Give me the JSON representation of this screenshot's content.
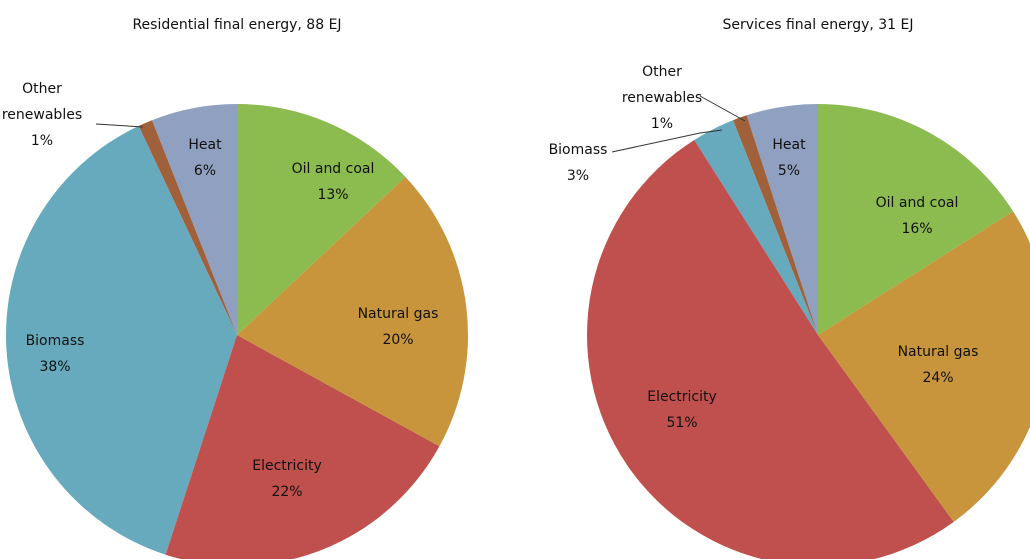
{
  "chart_data": [
    {
      "type": "pie",
      "title": "Residential final energy, 88 EJ",
      "categories": [
        "Oil and coal",
        "Natural gas",
        "Electricity",
        "Biomass",
        "Other renewables",
        "Heat"
      ],
      "values": [
        13,
        20,
        22,
        38,
        1,
        6
      ],
      "value_labels": [
        "13%",
        "20%",
        "22%",
        "38%",
        "1%",
        "6%"
      ],
      "colors": [
        "#8cbb4f",
        "#c9953c",
        "#c0504d",
        "#67a9bd",
        "#a0603a",
        "#8fa0c0"
      ]
    },
    {
      "type": "pie",
      "title": "Services final energy, 31 EJ",
      "categories": [
        "Oil and coal",
        "Natural gas",
        "Electricity",
        "Biomass",
        "Other renewables",
        "Heat"
      ],
      "values": [
        16,
        24,
        51,
        3,
        1,
        5
      ],
      "value_labels": [
        "16%",
        "24%",
        "51%",
        "3%",
        "1%",
        "5%"
      ],
      "colors": [
        "#8cbb4f",
        "#c9953c",
        "#c0504d",
        "#67a9bd",
        "#a0603a",
        "#8fa0c0"
      ]
    }
  ]
}
